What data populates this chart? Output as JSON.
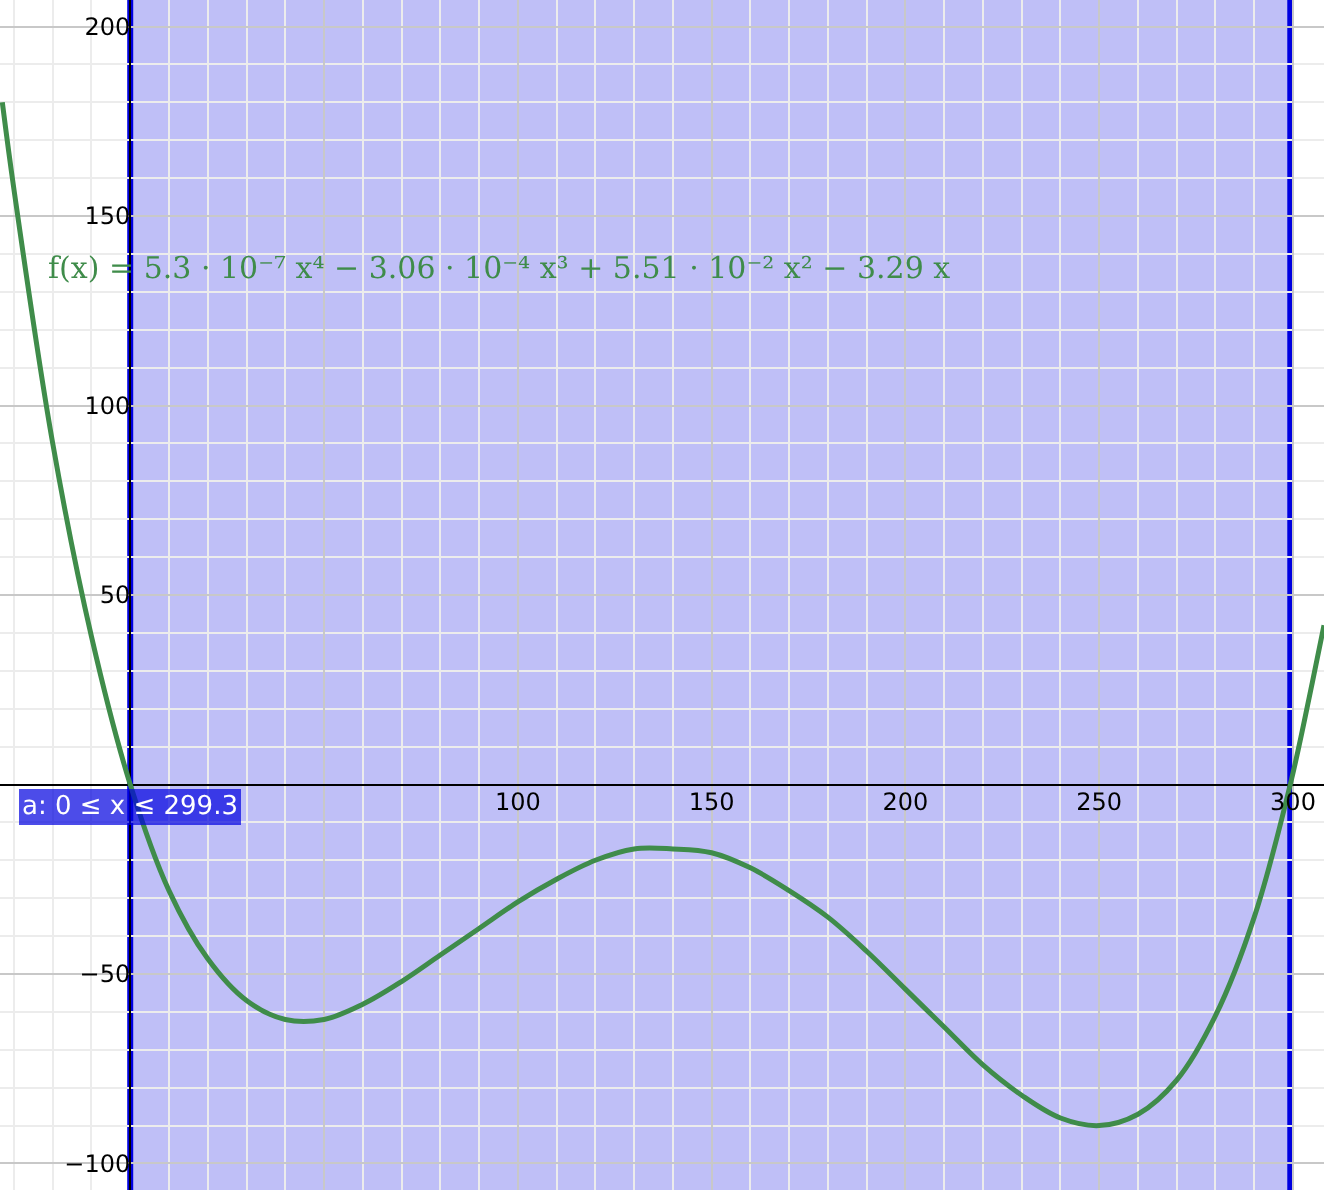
{
  "chart_data": {
    "type": "line",
    "x": [
      -33,
      -30,
      -20,
      -10,
      0,
      10,
      20,
      30,
      40,
      50,
      60,
      70,
      80,
      90,
      100,
      110,
      120,
      130,
      140,
      150,
      160,
      170,
      180,
      190,
      200,
      210,
      220,
      230,
      240,
      250,
      260,
      270,
      280,
      290,
      299.3,
      305,
      308
    ],
    "series": [
      {
        "name": "f(x) = 5.3 · 10⁻⁷ x⁴ − 3.06 · 10⁻⁴ x³ + 5.51 · 10⁻² x² − 3.29 x",
        "color": "#3f8c4a",
        "values": [
          180,
          157,
          90,
          39,
          0,
          -28,
          -46,
          -57,
          -62,
          -62,
          -58,
          -52,
          -45,
          -38,
          -31,
          -25,
          -20,
          -17,
          -17,
          -18,
          -22,
          -28,
          -35,
          -44,
          -54,
          -64,
          -74,
          -82,
          -88,
          -90,
          -87,
          -78,
          -61,
          -35,
          0,
          27,
          42
        ]
      }
    ],
    "xlim": [
      -33.6,
      308
    ],
    "ylim": [
      -107,
      207
    ],
    "xticks": [
      {
        "value": 50,
        "label": null
      },
      100,
      150,
      200,
      250,
      300
    ],
    "yticks": [
      -100,
      -50,
      50,
      100,
      150,
      200
    ],
    "bands": [
      {
        "axis": "x",
        "from": 0,
        "to": 299.3,
        "label": "a: 0 ≤ x ≤ 299.3",
        "color": "#0000e0"
      }
    ],
    "grid": true,
    "legend": false,
    "marker": "none",
    "line_style": "solid"
  }
}
